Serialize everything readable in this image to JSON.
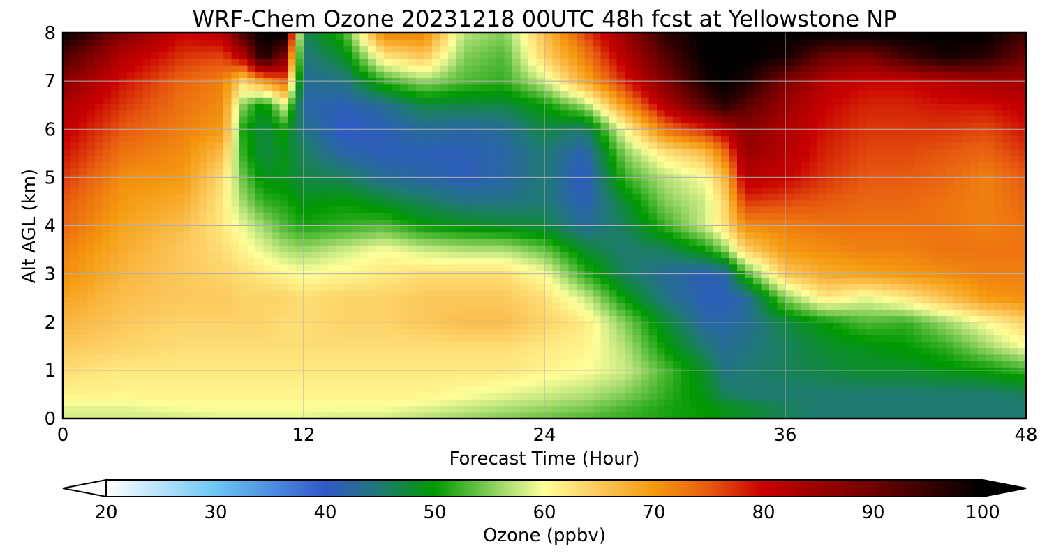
{
  "chart_data": {
    "type": "heatmap",
    "title": "WRF-Chem Ozone  20231218 00UTC 48h fcst at Yellowstone NP",
    "xlabel": "Forecast Time (Hour)",
    "ylabel": "Alt AGL (km)",
    "xlim": [
      0,
      48
    ],
    "ylim": [
      0,
      8
    ],
    "x_ticks": [
      "0",
      "12",
      "24",
      "36",
      "48"
    ],
    "y_ticks": [
      "0",
      "1",
      "2",
      "3",
      "4",
      "5",
      "6",
      "7",
      "8"
    ],
    "grid": true,
    "colorbar": {
      "label": "Ozone  (ppbv)",
      "range": [
        20,
        100
      ],
      "ticks": [
        "20",
        "30",
        "40",
        "50",
        "60",
        "70",
        "80",
        "90",
        "100"
      ],
      "extend": "both",
      "stops": [
        [
          20,
          "#ffffff"
        ],
        [
          30,
          "#6cc6f5"
        ],
        [
          40,
          "#3058c8"
        ],
        [
          45,
          "#1f7a72"
        ],
        [
          50,
          "#009900"
        ],
        [
          57,
          "#b6e27a"
        ],
        [
          60,
          "#ffff99"
        ],
        [
          65,
          "#fcc85c"
        ],
        [
          70,
          "#f59a10"
        ],
        [
          75,
          "#e75a10"
        ],
        [
          80,
          "#c80000"
        ],
        [
          90,
          "#6e0000"
        ],
        [
          100,
          "#000000"
        ]
      ]
    },
    "x": [
      0,
      3,
      6,
      8,
      9,
      10,
      11,
      12,
      14,
      16,
      18,
      20,
      22,
      24,
      26,
      28,
      30,
      32,
      33,
      34,
      36,
      38,
      40,
      42,
      44,
      46,
      48
    ],
    "y": [
      0,
      0.25,
      0.5,
      1,
      1.5,
      2,
      2.5,
      3,
      3.5,
      4,
      4.5,
      5,
      5.5,
      6,
      6.5,
      7,
      7.5,
      8
    ],
    "z": [
      [
        58,
        58,
        58,
        59,
        59,
        59,
        59,
        59,
        58,
        58,
        57,
        56,
        55,
        54,
        53,
        52,
        51,
        50,
        49,
        48,
        46,
        45,
        45,
        45,
        45,
        45,
        45
      ],
      [
        59,
        59,
        60,
        60,
        60,
        60,
        60,
        60,
        60,
        60,
        59,
        58,
        57,
        56,
        55,
        53,
        51,
        50,
        49,
        48,
        46,
        45,
        45,
        45,
        45,
        45,
        45
      ],
      [
        61,
        61,
        61,
        61,
        61,
        61,
        61,
        61,
        61,
        61,
        61,
        60,
        59,
        58,
        57,
        55,
        52,
        49,
        46,
        45,
        45,
        45,
        45,
        45,
        45,
        45,
        46
      ],
      [
        63,
        62,
        62,
        62,
        62,
        62,
        62,
        62,
        62,
        62,
        62,
        62,
        62,
        61,
        60,
        58,
        53,
        48,
        44,
        45,
        46,
        47,
        48,
        48,
        49,
        50,
        52
      ],
      [
        65,
        64,
        63,
        63,
        63,
        63,
        63,
        63,
        63,
        63,
        63,
        63,
        63,
        62,
        61,
        57,
        50,
        45,
        43,
        44,
        46,
        48,
        49,
        50,
        52,
        56,
        60
      ],
      [
        67,
        65,
        64,
        64,
        64,
        64,
        63,
        63,
        64,
        64,
        65,
        66,
        66,
        64,
        62,
        55,
        48,
        42,
        42,
        43,
        47,
        50,
        53,
        52,
        56,
        60,
        64
      ],
      [
        69,
        66,
        65,
        65,
        64,
        64,
        64,
        63,
        64,
        64,
        65,
        65,
        65,
        63,
        58,
        50,
        44,
        41,
        41,
        42,
        55,
        62,
        59,
        62,
        66,
        70,
        71
      ],
      [
        71,
        67,
        65,
        64,
        63,
        62,
        61,
        60,
        61,
        62,
        63,
        63,
        63,
        60,
        52,
        46,
        43,
        41,
        42,
        52,
        65,
        68,
        69,
        70,
        71,
        72,
        72
      ],
      [
        72,
        68,
        65,
        63,
        61,
        59,
        57,
        56,
        58,
        60,
        58,
        57,
        57,
        54,
        48,
        45,
        46,
        50,
        55,
        64,
        70,
        71,
        72,
        72,
        73,
        73,
        73
      ],
      [
        74,
        69,
        66,
        62,
        59,
        56,
        53,
        51,
        52,
        53,
        50,
        49,
        48,
        47,
        43,
        46,
        52,
        58,
        63,
        71,
        72,
        73,
        73,
        73,
        73,
        72,
        73
      ],
      [
        75,
        70,
        68,
        62,
        56,
        52,
        51,
        49,
        50,
        48,
        46,
        44,
        44,
        45,
        41,
        48,
        55,
        58,
        64,
        77,
        76,
        75,
        74,
        74,
        73,
        72,
        74
      ],
      [
        77,
        71,
        70,
        63,
        54,
        49,
        49,
        47,
        46,
        43,
        42,
        41,
        42,
        45,
        40,
        52,
        57,
        60,
        67,
        82,
        80,
        77,
        75,
        75,
        74,
        72,
        75
      ],
      [
        79,
        73,
        71,
        66,
        52,
        47,
        49,
        46,
        42,
        41,
        41,
        41,
        42,
        45,
        41,
        55,
        62,
        66,
        73,
        85,
        82,
        78,
        76,
        76,
        75,
        74,
        77
      ],
      [
        81,
        75,
        72,
        70,
        51,
        47,
        50,
        44,
        40,
        41,
        43,
        42,
        43,
        47,
        45,
        60,
        73,
        78,
        82,
        87,
        83,
        79,
        77,
        77,
        77,
        76,
        79
      ],
      [
        83,
        77,
        73,
        71,
        55,
        49,
        58,
        42,
        41,
        43,
        47,
        47,
        47,
        50,
        56,
        70,
        82,
        92,
        96,
        92,
        85,
        80,
        78,
        78,
        79,
        79,
        81
      ],
      [
        87,
        79,
        74,
        72,
        64,
        70,
        74,
        43,
        44,
        52,
        56,
        53,
        52,
        58,
        68,
        78,
        88,
        98,
        100,
        98,
        88,
        82,
        80,
        80,
        82,
        84,
        84
      ],
      [
        93,
        82,
        77,
        76,
        82,
        98,
        88,
        44,
        48,
        62,
        65,
        55,
        53,
        64,
        72,
        82,
        92,
        100,
        100,
        100,
        98,
        90,
        88,
        94,
        98,
        96,
        90
      ],
      [
        100,
        88,
        80,
        82,
        94,
        100,
        100,
        46,
        52,
        72,
        72,
        57,
        55,
        66,
        76,
        85,
        96,
        100,
        100,
        100,
        100,
        100,
        100,
        100,
        100,
        100,
        94
      ]
    ]
  }
}
